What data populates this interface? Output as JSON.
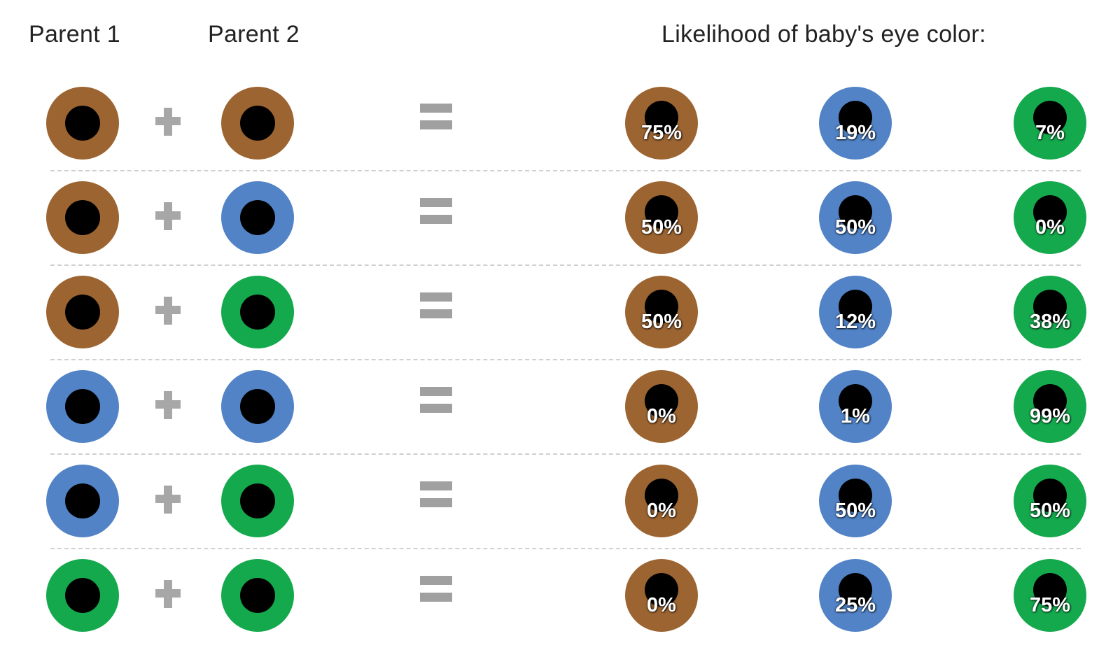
{
  "headers": {
    "parent1": "Parent 1",
    "parent2": "Parent 2",
    "likelihood": "Likelihood of baby's eye color:"
  },
  "colors": {
    "brown": "#9c6431",
    "blue": "#5183c6",
    "green": "#14a94c",
    "pupil": "#000000",
    "operator": "#a7a7a7"
  },
  "outcome_order": [
    "brown",
    "blue",
    "green"
  ],
  "rows": [
    {
      "parent1": "brown",
      "parent2": "brown",
      "outcomes": [
        "75%",
        "19%",
        "7%"
      ]
    },
    {
      "parent1": "brown",
      "parent2": "blue",
      "outcomes": [
        "50%",
        "50%",
        "0%"
      ]
    },
    {
      "parent1": "brown",
      "parent2": "green",
      "outcomes": [
        "50%",
        "12%",
        "38%"
      ]
    },
    {
      "parent1": "blue",
      "parent2": "blue",
      "outcomes": [
        "0%",
        "1%",
        "99%"
      ]
    },
    {
      "parent1": "blue",
      "parent2": "green",
      "outcomes": [
        "0%",
        "50%",
        "50%"
      ]
    },
    {
      "parent1": "green",
      "parent2": "green",
      "outcomes": [
        "0%",
        "25%",
        "75%"
      ]
    }
  ]
}
